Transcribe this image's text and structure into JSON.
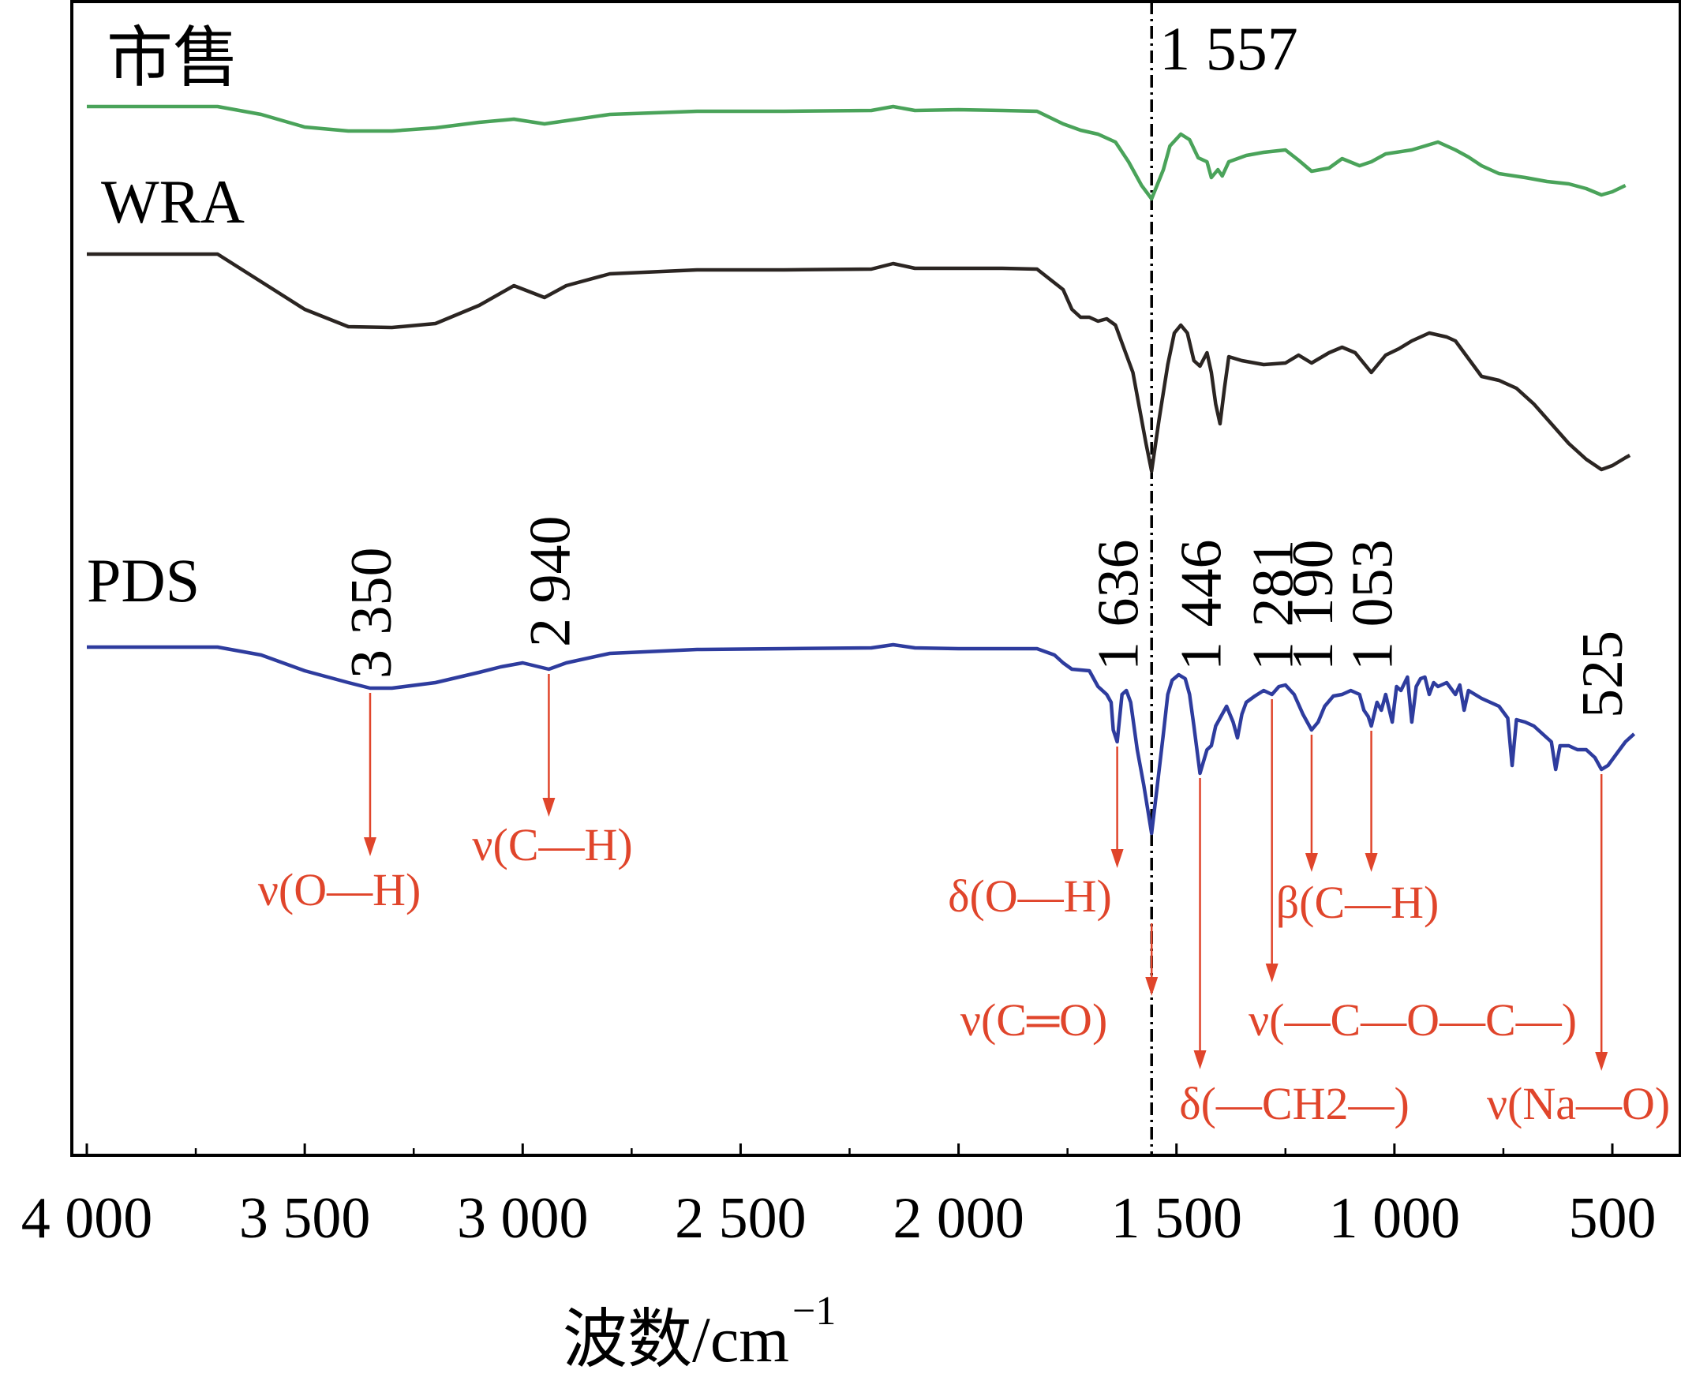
{
  "chart_data": {
    "type": "line",
    "title": "",
    "xlabel": "波数/cm",
    "xlabel_superscript": "−1",
    "ylabel": "",
    "xlim": [
      4050,
      450
    ],
    "x_ticks": [
      4000,
      3500,
      3000,
      2500,
      2000,
      1500,
      1000,
      500
    ],
    "x_tick_labels": [
      "4 000",
      "3 500",
      "3 000",
      "2 500",
      "2 000",
      "1 500",
      "1 000",
      "500"
    ],
    "y_ticks_shown": false,
    "grid": false,
    "reference_line": {
      "x": 1557,
      "label": "1 557",
      "style": "dash-dot"
    },
    "colors": {
      "market": "#4aa35a",
      "wra": "#2b2522",
      "pds": "#2e3c9e",
      "annotation": "#e0452b",
      "axis": "#000000"
    },
    "series": [
      {
        "name": "市售",
        "color": "#4aa35a",
        "points": [
          [
            4000,
            0
          ],
          [
            3700,
            0
          ],
          [
            3600,
            10
          ],
          [
            3500,
            26
          ],
          [
            3400,
            31
          ],
          [
            3300,
            31
          ],
          [
            3200,
            27
          ],
          [
            3100,
            20
          ],
          [
            3020,
            16
          ],
          [
            2950,
            22
          ],
          [
            2900,
            18
          ],
          [
            2800,
            10
          ],
          [
            2600,
            6
          ],
          [
            2400,
            6
          ],
          [
            2200,
            5
          ],
          [
            2150,
            0
          ],
          [
            2100,
            5
          ],
          [
            2000,
            4
          ],
          [
            1900,
            5
          ],
          [
            1820,
            6
          ],
          [
            1760,
            22
          ],
          [
            1720,
            30
          ],
          [
            1680,
            35
          ],
          [
            1640,
            45
          ],
          [
            1610,
            70
          ],
          [
            1580,
            100
          ],
          [
            1557,
            117
          ],
          [
            1530,
            80
          ],
          [
            1515,
            50
          ],
          [
            1490,
            35
          ],
          [
            1470,
            42
          ],
          [
            1450,
            65
          ],
          [
            1430,
            70
          ],
          [
            1420,
            90
          ],
          [
            1405,
            80
          ],
          [
            1395,
            88
          ],
          [
            1380,
            70
          ],
          [
            1340,
            62
          ],
          [
            1300,
            58
          ],
          [
            1250,
            55
          ],
          [
            1220,
            68
          ],
          [
            1190,
            82
          ],
          [
            1150,
            78
          ],
          [
            1120,
            66
          ],
          [
            1080,
            75
          ],
          [
            1053,
            70
          ],
          [
            1020,
            60
          ],
          [
            960,
            55
          ],
          [
            900,
            45
          ],
          [
            860,
            55
          ],
          [
            830,
            64
          ],
          [
            800,
            75
          ],
          [
            760,
            85
          ],
          [
            700,
            90
          ],
          [
            650,
            95
          ],
          [
            600,
            98
          ],
          [
            560,
            104
          ],
          [
            525,
            112
          ],
          [
            500,
            108
          ],
          [
            470,
            100
          ]
        ]
      },
      {
        "name": "WRA",
        "color": "#2b2522",
        "points": [
          [
            4000,
            0
          ],
          [
            3700,
            0
          ],
          [
            3600,
            35
          ],
          [
            3500,
            70
          ],
          [
            3400,
            92
          ],
          [
            3300,
            93
          ],
          [
            3200,
            88
          ],
          [
            3100,
            65
          ],
          [
            3020,
            40
          ],
          [
            2950,
            55
          ],
          [
            2900,
            40
          ],
          [
            2800,
            25
          ],
          [
            2600,
            20
          ],
          [
            2400,
            20
          ],
          [
            2200,
            19
          ],
          [
            2150,
            12
          ],
          [
            2100,
            18
          ],
          [
            2000,
            18
          ],
          [
            1900,
            18
          ],
          [
            1820,
            19
          ],
          [
            1760,
            45
          ],
          [
            1740,
            70
          ],
          [
            1720,
            80
          ],
          [
            1700,
            80
          ],
          [
            1680,
            85
          ],
          [
            1660,
            82
          ],
          [
            1640,
            90
          ],
          [
            1620,
            120
          ],
          [
            1600,
            150
          ],
          [
            1585,
            195
          ],
          [
            1570,
            240
          ],
          [
            1557,
            275
          ],
          [
            1540,
            210
          ],
          [
            1520,
            140
          ],
          [
            1505,
            100
          ],
          [
            1490,
            90
          ],
          [
            1475,
            100
          ],
          [
            1460,
            135
          ],
          [
            1446,
            142
          ],
          [
            1430,
            125
          ],
          [
            1420,
            150
          ],
          [
            1410,
            190
          ],
          [
            1400,
            215
          ],
          [
            1390,
            170
          ],
          [
            1380,
            130
          ],
          [
            1350,
            135
          ],
          [
            1300,
            140
          ],
          [
            1250,
            138
          ],
          [
            1220,
            128
          ],
          [
            1190,
            138
          ],
          [
            1150,
            125
          ],
          [
            1120,
            118
          ],
          [
            1090,
            125
          ],
          [
            1053,
            150
          ],
          [
            1020,
            128
          ],
          [
            990,
            120
          ],
          [
            960,
            110
          ],
          [
            920,
            100
          ],
          [
            880,
            105
          ],
          [
            860,
            110
          ],
          [
            840,
            125
          ],
          [
            800,
            155
          ],
          [
            760,
            160
          ],
          [
            720,
            170
          ],
          [
            680,
            190
          ],
          [
            640,
            215
          ],
          [
            600,
            240
          ],
          [
            560,
            260
          ],
          [
            525,
            273
          ],
          [
            500,
            268
          ],
          [
            470,
            258
          ],
          [
            460,
            255
          ]
        ]
      },
      {
        "name": "PDS",
        "color": "#2e3c9e",
        "points": [
          [
            4000,
            0
          ],
          [
            3700,
            0
          ],
          [
            3600,
            10
          ],
          [
            3500,
            30
          ],
          [
            3400,
            45
          ],
          [
            3350,
            52
          ],
          [
            3300,
            52
          ],
          [
            3200,
            45
          ],
          [
            3100,
            32
          ],
          [
            3050,
            25
          ],
          [
            3000,
            20
          ],
          [
            2940,
            28
          ],
          [
            2900,
            20
          ],
          [
            2800,
            8
          ],
          [
            2600,
            3
          ],
          [
            2400,
            2
          ],
          [
            2200,
            1
          ],
          [
            2150,
            -3
          ],
          [
            2100,
            1
          ],
          [
            2000,
            2
          ],
          [
            1900,
            2
          ],
          [
            1820,
            2
          ],
          [
            1780,
            10
          ],
          [
            1760,
            20
          ],
          [
            1740,
            28
          ],
          [
            1700,
            30
          ],
          [
            1680,
            50
          ],
          [
            1660,
            60
          ],
          [
            1650,
            70
          ],
          [
            1645,
            105
          ],
          [
            1636,
            120
          ],
          [
            1625,
            60
          ],
          [
            1615,
            55
          ],
          [
            1605,
            70
          ],
          [
            1590,
            130
          ],
          [
            1575,
            175
          ],
          [
            1557,
            236
          ],
          [
            1545,
            180
          ],
          [
            1530,
            110
          ],
          [
            1520,
            60
          ],
          [
            1510,
            42
          ],
          [
            1495,
            35
          ],
          [
            1480,
            40
          ],
          [
            1470,
            60
          ],
          [
            1460,
            100
          ],
          [
            1446,
            160
          ],
          [
            1430,
            130
          ],
          [
            1420,
            125
          ],
          [
            1410,
            100
          ],
          [
            1400,
            90
          ],
          [
            1385,
            75
          ],
          [
            1370,
            95
          ],
          [
            1360,
            115
          ],
          [
            1350,
            85
          ],
          [
            1340,
            70
          ],
          [
            1320,
            62
          ],
          [
            1300,
            55
          ],
          [
            1281,
            60
          ],
          [
            1265,
            50
          ],
          [
            1250,
            48
          ],
          [
            1230,
            60
          ],
          [
            1210,
            85
          ],
          [
            1190,
            105
          ],
          [
            1175,
            95
          ],
          [
            1160,
            75
          ],
          [
            1140,
            62
          ],
          [
            1120,
            60
          ],
          [
            1100,
            55
          ],
          [
            1080,
            60
          ],
          [
            1070,
            80
          ],
          [
            1060,
            88
          ],
          [
            1053,
            100
          ],
          [
            1040,
            70
          ],
          [
            1030,
            80
          ],
          [
            1020,
            60
          ],
          [
            1005,
            95
          ],
          [
            995,
            50
          ],
          [
            985,
            55
          ],
          [
            970,
            38
          ],
          [
            960,
            95
          ],
          [
            950,
            50
          ],
          [
            940,
            40
          ],
          [
            930,
            38
          ],
          [
            920,
            60
          ],
          [
            910,
            45
          ],
          [
            900,
            50
          ],
          [
            880,
            45
          ],
          [
            860,
            60
          ],
          [
            850,
            48
          ],
          [
            840,
            80
          ],
          [
            830,
            55
          ],
          [
            800,
            65
          ],
          [
            780,
            70
          ],
          [
            760,
            75
          ],
          [
            740,
            90
          ],
          [
            730,
            150
          ],
          [
            720,
            92
          ],
          [
            700,
            95
          ],
          [
            680,
            100
          ],
          [
            660,
            110
          ],
          [
            640,
            120
          ],
          [
            630,
            155
          ],
          [
            620,
            125
          ],
          [
            600,
            125
          ],
          [
            580,
            130
          ],
          [
            560,
            130
          ],
          [
            540,
            140
          ],
          [
            525,
            155
          ],
          [
            510,
            150
          ],
          [
            490,
            135
          ],
          [
            470,
            120
          ],
          [
            450,
            110
          ]
        ]
      }
    ],
    "curve_labels": [
      "市售",
      "WRA",
      "PDS"
    ],
    "peaks": [
      {
        "x": 3350,
        "label": "3 350",
        "assignment": "ν(O—H)"
      },
      {
        "x": 2940,
        "label": "2 940",
        "assignment": "ν(C—H)"
      },
      {
        "x": 1636,
        "label": "1 636",
        "assignment": "δ(O—H)"
      },
      {
        "x": 1557,
        "label": "",
        "assignment": "ν(C═O)"
      },
      {
        "x": 1446,
        "label": "1 446",
        "assignment": "δ(—CH2—)"
      },
      {
        "x": 1281,
        "label": "1 281",
        "assignment": "ν(—C—O—C—)"
      },
      {
        "x": 1190,
        "label": "1 190",
        "assignment": "β(C—H)"
      },
      {
        "x": 1053,
        "label": "1 053",
        "assignment": ""
      },
      {
        "x": 525,
        "label": "525",
        "assignment": "ν(Na—O)"
      }
    ]
  }
}
